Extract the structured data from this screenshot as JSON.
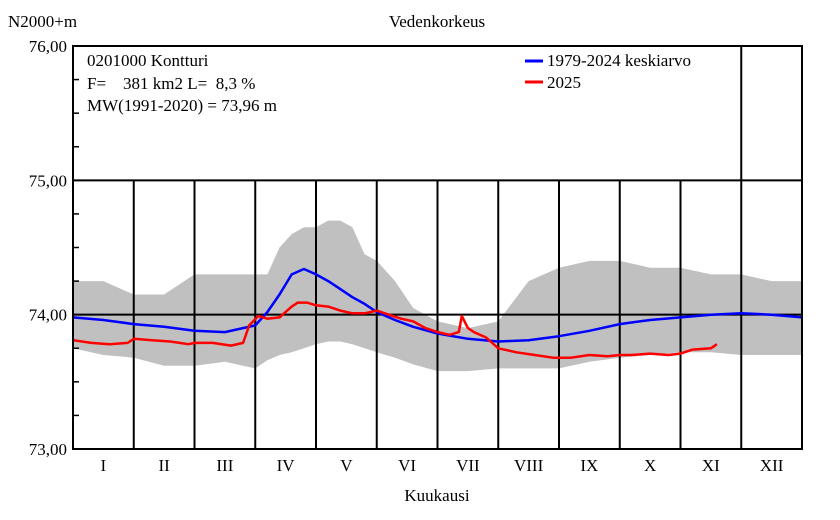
{
  "chart_data": {
    "type": "line",
    "title": "Vedenkorkeus",
    "ylabel": "N2000+m",
    "xlabel": "Kuukausi",
    "ylim": [
      73.0,
      76.0
    ],
    "xlim": [
      0,
      12
    ],
    "yticks": [
      {
        "value": 76.0,
        "label": "76,00"
      },
      {
        "value": 75.0,
        "label": "75,00"
      },
      {
        "value": 74.0,
        "label": "74,00"
      },
      {
        "value": 73.0,
        "label": "73,00"
      }
    ],
    "minor_ytick_step": 0.25,
    "months": [
      "I",
      "II",
      "III",
      "IV",
      "V",
      "VI",
      "VII",
      "VIII",
      "IX",
      "X",
      "XI",
      "XII"
    ],
    "info": {
      "station": "0201000 Kontturi",
      "area": "F=    381 km2 L=  8,3 %",
      "mean": "MW(1991-2020) = 73,96 m"
    },
    "legend": [
      {
        "label": "1979-2024 keskiarvo",
        "color": "#0000ff"
      },
      {
        "label": "2025",
        "color": "#ff0000"
      }
    ],
    "band": {
      "name": "1979-2024 min-max",
      "color": "#c0c0c0",
      "x": [
        0,
        0.5,
        1.0,
        1.5,
        2.0,
        2.5,
        3.0,
        3.2,
        3.4,
        3.6,
        3.8,
        4.0,
        4.2,
        4.4,
        4.6,
        4.8,
        5.0,
        5.3,
        5.6,
        6.0,
        6.5,
        7.0,
        7.5,
        8.0,
        8.5,
        9.0,
        9.5,
        10.0,
        10.5,
        11.0,
        11.5,
        12.0
      ],
      "upper": [
        74.25,
        74.25,
        74.15,
        74.15,
        74.3,
        74.3,
        74.3,
        74.3,
        74.5,
        74.6,
        74.65,
        74.65,
        74.7,
        74.7,
        74.65,
        74.45,
        74.4,
        74.25,
        74.05,
        73.95,
        73.9,
        73.95,
        74.25,
        74.35,
        74.4,
        74.4,
        74.35,
        74.35,
        74.3,
        74.3,
        74.25,
        74.25
      ],
      "lower": [
        73.75,
        73.7,
        73.68,
        73.62,
        73.62,
        73.65,
        73.6,
        73.66,
        73.7,
        73.72,
        73.75,
        73.78,
        73.8,
        73.8,
        73.78,
        73.75,
        73.72,
        73.68,
        73.63,
        73.58,
        73.58,
        73.6,
        73.6,
        73.6,
        73.65,
        73.68,
        73.7,
        73.72,
        73.72,
        73.7,
        73.7,
        73.7
      ]
    },
    "series": [
      {
        "name": "1979-2024 keskiarvo",
        "color": "#0000ff",
        "x": [
          0,
          0.5,
          1.0,
          1.5,
          2.0,
          2.5,
          3.0,
          3.2,
          3.4,
          3.6,
          3.8,
          4.0,
          4.2,
          4.4,
          4.6,
          4.8,
          5.0,
          5.3,
          5.6,
          6.0,
          6.5,
          7.0,
          7.5,
          8.0,
          8.5,
          9.0,
          9.5,
          10.0,
          10.5,
          11.0,
          11.5,
          12.0
        ],
        "y": [
          73.98,
          73.96,
          73.93,
          73.91,
          73.88,
          73.87,
          73.92,
          74.02,
          74.15,
          74.3,
          74.34,
          74.3,
          74.25,
          74.19,
          74.13,
          74.08,
          74.02,
          73.96,
          73.91,
          73.86,
          73.82,
          73.8,
          73.81,
          73.84,
          73.88,
          73.93,
          73.96,
          73.98,
          74.0,
          74.01,
          74.0,
          73.98
        ]
      },
      {
        "name": "2025",
        "color": "#ff0000",
        "x": [
          0,
          0.3,
          0.6,
          0.9,
          1.0,
          1.3,
          1.6,
          1.9,
          2.0,
          2.3,
          2.6,
          2.8,
          2.9,
          3.05,
          3.2,
          3.4,
          3.6,
          3.7,
          3.85,
          4.0,
          4.2,
          4.4,
          4.6,
          4.8,
          5.0,
          5.2,
          5.4,
          5.6,
          5.8,
          6.0,
          6.2,
          6.35,
          6.4,
          6.5,
          6.6,
          6.8,
          7.0,
          7.3,
          7.6,
          7.9,
          8.2,
          8.5,
          8.8,
          9.0,
          9.2,
          9.5,
          9.8,
          10.0,
          10.2,
          10.5,
          10.6
        ],
        "y": [
          73.81,
          73.79,
          73.78,
          73.79,
          73.82,
          73.81,
          73.8,
          73.78,
          73.79,
          73.79,
          73.77,
          73.79,
          73.92,
          73.99,
          73.97,
          73.98,
          74.06,
          74.09,
          74.09,
          74.07,
          74.06,
          74.03,
          74.01,
          74.01,
          74.03,
          74.0,
          73.97,
          73.95,
          73.9,
          73.87,
          73.85,
          73.87,
          73.99,
          73.9,
          73.87,
          73.83,
          73.75,
          73.72,
          73.7,
          73.68,
          73.68,
          73.7,
          73.69,
          73.7,
          73.7,
          73.71,
          73.7,
          73.71,
          73.74,
          73.75,
          73.78
        ]
      }
    ]
  }
}
